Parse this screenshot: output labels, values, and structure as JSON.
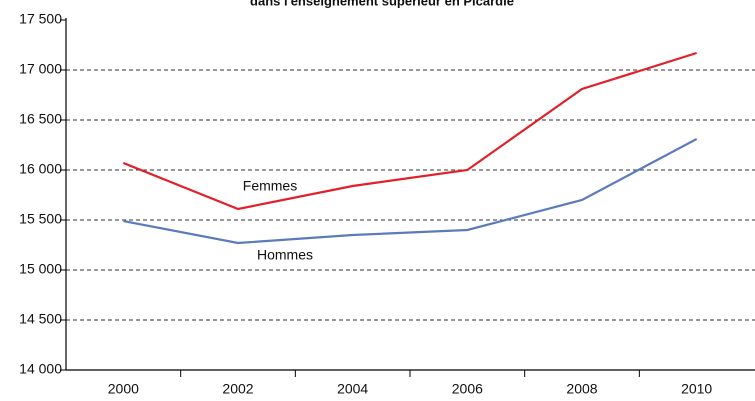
{
  "chart_data": {
    "type": "line",
    "title": "dans l'enseignement supérieur en Picardie",
    "categories": [
      "2000",
      "2002",
      "2004",
      "2006",
      "2008",
      "2010"
    ],
    "series": [
      {
        "name": "Femmes",
        "color": "#e2202a",
        "values": [
          16070,
          15610,
          15840,
          16000,
          16810,
          17170
        ]
      },
      {
        "name": "Hommes",
        "color": "#5b7bbd",
        "values": [
          15490,
          15270,
          15350,
          15400,
          15700,
          16310
        ]
      }
    ],
    "ylim": [
      14000,
      17500
    ],
    "yticks": [
      {
        "value": 14000,
        "label": "14 000"
      },
      {
        "value": 14500,
        "label": "14 500"
      },
      {
        "value": 15000,
        "label": "15 000"
      },
      {
        "value": 15500,
        "label": "15 500"
      },
      {
        "value": 16000,
        "label": "16 000"
      },
      {
        "value": 16500,
        "label": "16 500"
      },
      {
        "value": 17000,
        "label": "17 000"
      },
      {
        "value": 17500,
        "label": "17 500"
      }
    ],
    "grid": true
  }
}
